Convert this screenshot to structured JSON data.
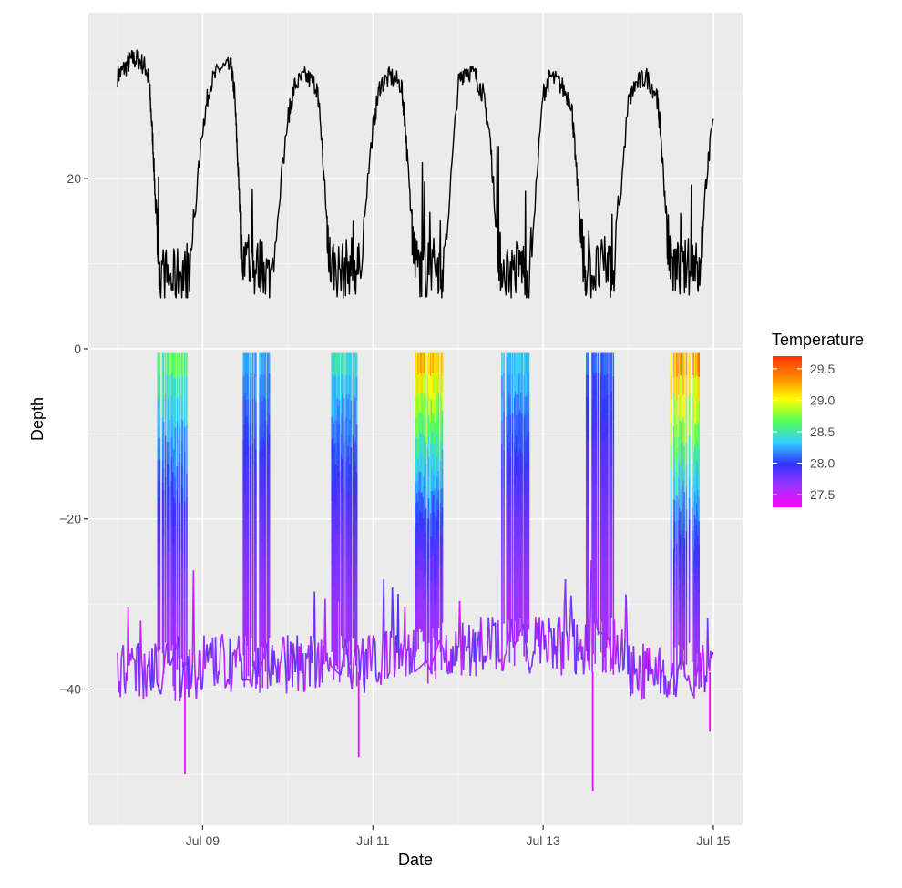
{
  "chart_data": {
    "type": "line",
    "title": "",
    "xlabel": "Date",
    "ylabel": "Depth",
    "x_range": [
      "2021-07-08",
      "2021-07-15"
    ],
    "y_range": [
      -56,
      39.5
    ],
    "x_ticks": [
      {
        "date": "2021-07-09",
        "label": "Jul 09"
      },
      {
        "date": "2021-07-11",
        "label": "Jul 11"
      },
      {
        "date": "2021-07-13",
        "label": "Jul 13"
      },
      {
        "date": "2021-07-15",
        "label": "Jul 15"
      }
    ],
    "y_ticks": [
      {
        "value": 20,
        "label": "20"
      },
      {
        "value": 0,
        "label": "0"
      },
      {
        "value": -20,
        "label": "−20"
      },
      {
        "value": -40,
        "label": "−40"
      }
    ],
    "grid": true,
    "legend": {
      "title": "Temperature",
      "position": "right",
      "type": "colorbar",
      "range": [
        27.3,
        29.7
      ],
      "ticks": [
        "29.5",
        "29.0",
        "28.5",
        "28.0",
        "27.5"
      ],
      "tick_values": [
        29.5,
        29.0,
        28.5,
        28.0,
        27.5
      ],
      "colors": [
        "#ff00ff",
        "#9933ff",
        "#3333ff",
        "#33ccff",
        "#55ff55",
        "#ffff00",
        "#ff8800",
        "#ff3300"
      ]
    },
    "series": [
      {
        "line_color": "#000000",
        "points": [
          {
            "x": "2021-07-08T00:00",
            "y": 32
          },
          {
            "x": "2021-07-08T02:00",
            "y": 33
          },
          {
            "x": "2021-07-08T04:00",
            "y": 34
          },
          {
            "x": "2021-07-08T06:00",
            "y": 34
          },
          {
            "x": "2021-07-08T08:00",
            "y": 33
          },
          {
            "x": "2021-07-08T09:00",
            "y": 31
          },
          {
            "x": "2021-07-08T10:00",
            "y": 24
          },
          {
            "x": "2021-07-08T11:00",
            "y": 14
          },
          {
            "x": "2021-07-08T12:00",
            "y": 9
          },
          {
            "x": "2021-07-08T15:00",
            "y": 8
          },
          {
            "x": "2021-07-08T18:00",
            "y": 9
          },
          {
            "x": "2021-07-08T20:00",
            "y": 8
          },
          {
            "x": "2021-07-09T00:00",
            "y": 26
          },
          {
            "x": "2021-07-09T02:00",
            "y": 31
          },
          {
            "x": "2021-07-09T05:00",
            "y": 33
          },
          {
            "x": "2021-07-09T08:00",
            "y": 33
          },
          {
            "x": "2021-07-09T09:00",
            "y": 30
          },
          {
            "x": "2021-07-09T10:00",
            "y": 21
          },
          {
            "x": "2021-07-09T11:00",
            "y": 12
          },
          {
            "x": "2021-07-09T14:00",
            "y": 9
          },
          {
            "x": "2021-07-09T17:00",
            "y": 10
          },
          {
            "x": "2021-07-09T19:00",
            "y": 8
          },
          {
            "x": "2021-07-10T00:00",
            "y": 27
          },
          {
            "x": "2021-07-10T02:00",
            "y": 31
          },
          {
            "x": "2021-07-10T05:00",
            "y": 32
          },
          {
            "x": "2021-07-10T08:00",
            "y": 31
          },
          {
            "x": "2021-07-10T09:00",
            "y": 28
          },
          {
            "x": "2021-07-10T11:00",
            "y": 15
          },
          {
            "x": "2021-07-10T12:00",
            "y": 10
          },
          {
            "x": "2021-07-10T15:00",
            "y": 9
          },
          {
            "x": "2021-07-10T18:00",
            "y": 10
          },
          {
            "x": "2021-07-10T20:00",
            "y": 9
          },
          {
            "x": "2021-07-11T00:00",
            "y": 26
          },
          {
            "x": "2021-07-11T02:00",
            "y": 31
          },
          {
            "x": "2021-07-11T05:00",
            "y": 32
          },
          {
            "x": "2021-07-11T08:00",
            "y": 31
          },
          {
            "x": "2021-07-11T09:00",
            "y": 27
          },
          {
            "x": "2021-07-11T11:00",
            "y": 14
          },
          {
            "x": "2021-07-11T12:00",
            "y": 10
          },
          {
            "x": "2021-07-11T15:00",
            "y": 9
          },
          {
            "x": "2021-07-11T18:00",
            "y": 10
          },
          {
            "x": "2021-07-11T20:00",
            "y": 9
          },
          {
            "x": "2021-07-12T00:00",
            "y": 31
          },
          {
            "x": "2021-07-12T02:00",
            "y": 33
          },
          {
            "x": "2021-07-12T05:00",
            "y": 32
          },
          {
            "x": "2021-07-12T07:00",
            "y": 30
          },
          {
            "x": "2021-07-12T09:00",
            "y": 25
          },
          {
            "x": "2021-07-12T11:00",
            "y": 13
          },
          {
            "x": "2021-07-12T12:00",
            "y": 10
          },
          {
            "x": "2021-07-12T15:00",
            "y": 9
          },
          {
            "x": "2021-07-12T18:00",
            "y": 10
          },
          {
            "x": "2021-07-12T20:00",
            "y": 8
          },
          {
            "x": "2021-07-13T00:00",
            "y": 30
          },
          {
            "x": "2021-07-13T02:00",
            "y": 32
          },
          {
            "x": "2021-07-13T05:00",
            "y": 31
          },
          {
            "x": "2021-07-13T08:00",
            "y": 29
          },
          {
            "x": "2021-07-13T09:00",
            "y": 23
          },
          {
            "x": "2021-07-13T11:00",
            "y": 12
          },
          {
            "x": "2021-07-13T12:00",
            "y": 9
          },
          {
            "x": "2021-07-13T15:00",
            "y": 9
          },
          {
            "x": "2021-07-13T18:00",
            "y": 10
          },
          {
            "x": "2021-07-13T20:00",
            "y": 9
          },
          {
            "x": "2021-07-14T00:00",
            "y": 29
          },
          {
            "x": "2021-07-14T02:00",
            "y": 31
          },
          {
            "x": "2021-07-14T05:00",
            "y": 32
          },
          {
            "x": "2021-07-14T08:00",
            "y": 30
          },
          {
            "x": "2021-07-14T09:00",
            "y": 26
          },
          {
            "x": "2021-07-14T11:00",
            "y": 14
          },
          {
            "x": "2021-07-14T12:00",
            "y": 10
          },
          {
            "x": "2021-07-14T15:00",
            "y": 9
          },
          {
            "x": "2021-07-14T18:00",
            "y": 10
          },
          {
            "x": "2021-07-14T20:00",
            "y": 9
          },
          {
            "x": "2021-07-14T22:00",
            "y": 20
          },
          {
            "x": "2021-07-15T00:00",
            "y": 27
          }
        ]
      }
    ],
    "colored_dive_profile": {
      "value_dimension": "Temperature",
      "baseline_depth_by_day": [
        -38,
        -37,
        -37,
        -36,
        -35,
        -35,
        -38
      ],
      "surface_periods": [
        {
          "start": "2021-07-08T11:00",
          "end": "2021-07-08T20:00",
          "min_depth": -0.5,
          "max_temp": 28.8
        },
        {
          "start": "2021-07-09T11:00",
          "end": "2021-07-09T19:00",
          "min_depth": -0.5,
          "max_temp": 28.4
        },
        {
          "start": "2021-07-10T12:00",
          "end": "2021-07-10T20:00",
          "min_depth": -0.5,
          "max_temp": 28.6
        },
        {
          "start": "2021-07-11T12:00",
          "end": "2021-07-11T20:00",
          "min_depth": -0.5,
          "max_temp": 29.5
        },
        {
          "start": "2021-07-12T12:00",
          "end": "2021-07-12T20:00",
          "min_depth": -0.5,
          "max_temp": 28.5
        },
        {
          "start": "2021-07-13T12:00",
          "end": "2021-07-13T20:00",
          "min_depth": -0.5,
          "max_temp": 28.2
        },
        {
          "start": "2021-07-14T12:00",
          "end": "2021-07-14T20:00",
          "min_depth": -0.5,
          "max_temp": 29.6
        }
      ],
      "deep_excursions": [
        {
          "x": "2021-07-08T19:00",
          "y": -50
        },
        {
          "x": "2021-07-10T20:00",
          "y": -48
        },
        {
          "x": "2021-07-13T14:00",
          "y": -52
        },
        {
          "x": "2021-07-14T23:00",
          "y": -45
        }
      ]
    }
  }
}
